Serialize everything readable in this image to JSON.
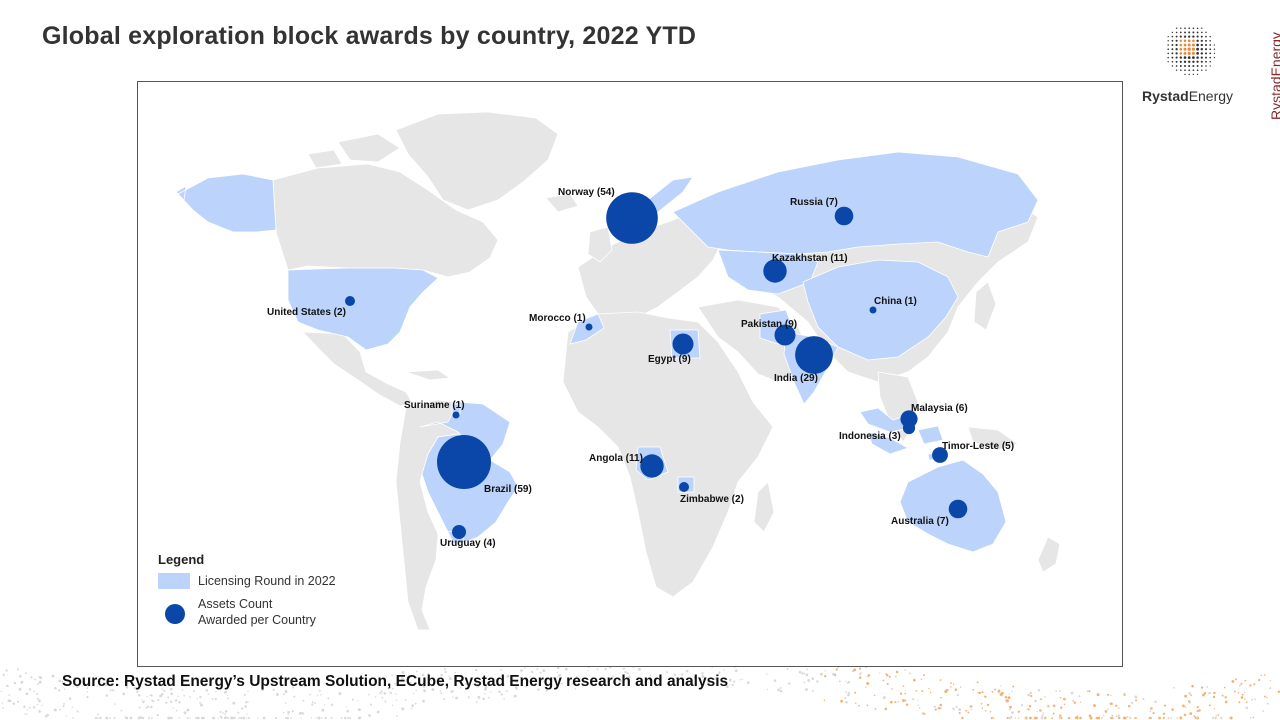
{
  "title": "Global exploration block awards by country, 2022 YTD",
  "brand": {
    "name_bold": "Rystad",
    "name_rest": "Energy",
    "vertical_text": "RystadEnergy"
  },
  "legend": {
    "title": "Legend",
    "swatch_label": "Licensing Round in 2022",
    "dot_label_line1": "Assets Count",
    "dot_label_line2": "Awarded per Country"
  },
  "source": "Source: Rystad Energy’s Upstream Solution,  ECube, Rystad Energy research and analysis",
  "colors": {
    "land": "#e6e6e6",
    "licensing_round": "#bcd3fb",
    "bubble": "#0a47a8",
    "accent_orange": "#e8883a"
  },
  "countries": [
    {
      "name": "Norway",
      "count": 54,
      "label": "Norway (54)"
    },
    {
      "name": "Brazil",
      "count": 59,
      "label": "Brazil (59)"
    },
    {
      "name": "India",
      "count": 29,
      "label": "India (29)"
    },
    {
      "name": "Russia",
      "count": 7,
      "label": "Russia (7)"
    },
    {
      "name": "Kazakhstan",
      "count": 11,
      "label": "Kazakhstan (11)"
    },
    {
      "name": "China",
      "count": 1,
      "label": "China (1)"
    },
    {
      "name": "United States",
      "count": 2,
      "label": "United States (2)"
    },
    {
      "name": "Morocco",
      "count": 1,
      "label": "Morocco (1)"
    },
    {
      "name": "Egypt",
      "count": 9,
      "label": "Egypt (9)"
    },
    {
      "name": "Pakistan",
      "count": 9,
      "label": "Pakistan (9)"
    },
    {
      "name": "Suriname",
      "count": 1,
      "label": "Suriname (1)"
    },
    {
      "name": "Angola",
      "count": 11,
      "label": "Angola (11)"
    },
    {
      "name": "Zimbabwe",
      "count": 2,
      "label": "Zimbabwe (2)"
    },
    {
      "name": "Uruguay",
      "count": 4,
      "label": "Uruguay (4)"
    },
    {
      "name": "Malaysia",
      "count": 6,
      "label": "Malaysia (6)"
    },
    {
      "name": "Indonesia",
      "count": 3,
      "label": "Indonesia (3)"
    },
    {
      "name": "Timor-Leste",
      "count": 5,
      "label": "Timor-Leste (5)"
    },
    {
      "name": "Australia",
      "count": 7,
      "label": "Australia (7)"
    }
  ]
}
